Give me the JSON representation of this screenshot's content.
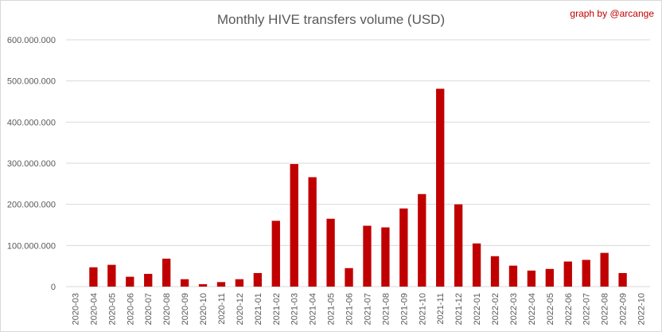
{
  "chart_data": {
    "type": "bar",
    "title": "Monthly HIVE transfers volume (USD)",
    "credit": "graph by @arcange",
    "xlabel": "",
    "ylabel": "",
    "ylim": [
      0,
      600000000
    ],
    "yticks": [
      {
        "value": 0,
        "label": "0"
      },
      {
        "value": 100000000,
        "label": "100.000.000"
      },
      {
        "value": 200000000,
        "label": "200.000.000"
      },
      {
        "value": 300000000,
        "label": "300.000.000"
      },
      {
        "value": 400000000,
        "label": "400.000.000"
      },
      {
        "value": 500000000,
        "label": "500.000.000"
      },
      {
        "value": 600000000,
        "label": "600.000.000"
      }
    ],
    "grid": true,
    "legend": "none",
    "bar_color": "#c00000",
    "categories": [
      "2020-03",
      "2020-04",
      "2020-05",
      "2020-06",
      "2020-07",
      "2020-08",
      "2020-09",
      "2020-10",
      "2020-11",
      "2020-12",
      "2021-01",
      "2021-02",
      "2021-03",
      "2021-04",
      "2021-05",
      "2021-06",
      "2021-07",
      "2021-08",
      "2021-09",
      "2021-10",
      "2021-11",
      "2021-12",
      "2022-01",
      "2022-02",
      "2022-03",
      "2022-04",
      "2022-05",
      "2022-06",
      "2022-07",
      "2022-08",
      "2022-09",
      "2022-10"
    ],
    "values": [
      0,
      47000000,
      53000000,
      24000000,
      31000000,
      68000000,
      18000000,
      6000000,
      11000000,
      18000000,
      33000000,
      160000000,
      298000000,
      266000000,
      165000000,
      45000000,
      148000000,
      144000000,
      190000000,
      225000000,
      481000000,
      200000000,
      105000000,
      74000000,
      51000000,
      39000000,
      43000000,
      61000000,
      65000000,
      82000000,
      33000000,
      0
    ]
  }
}
